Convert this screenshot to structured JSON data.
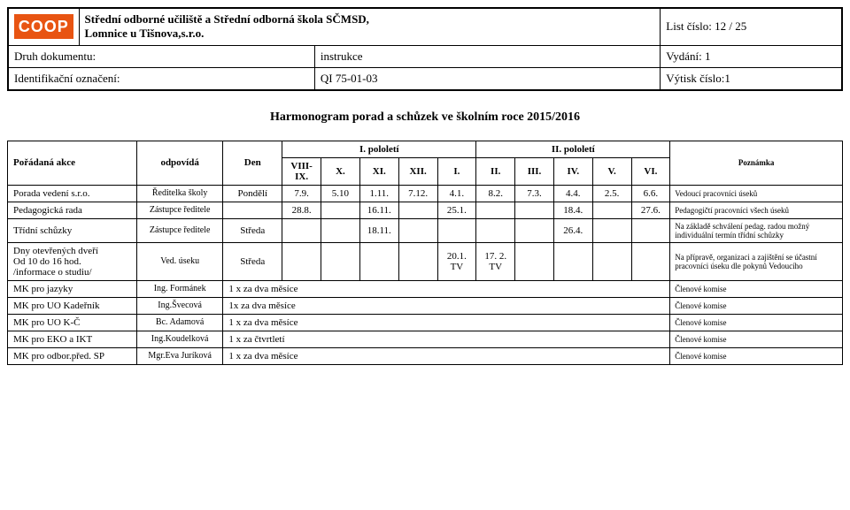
{
  "header": {
    "logo_text": "COOP",
    "title_line1": "Střední odborné učiliště a Střední odborná škola SČMSD,",
    "title_line2": "Lomnice u Tišnova,s.r.o.",
    "list_label": "List číslo: 12 / 25",
    "doc_type_label": "Druh dokumentu:",
    "doc_type_value": "instrukce",
    "vydani_label": "Vydání: 1",
    "ident_label": "Identifikační označení:",
    "ident_value": "QI 75-01-03",
    "vytisk_label": "Výtisk číslo:1"
  },
  "doc_title": "Harmonogram porad a schůzek ve školním roce 2015/2016",
  "colors": {
    "logo_bg": "#e85412",
    "logo_fg": "#ffffff",
    "border": "#000000",
    "bg": "#ffffff"
  },
  "table": {
    "head": {
      "poradana": "Pořádaná akce",
      "odpovida": "odpovídá",
      "den": "Den",
      "pololeti1": "I. pololetí",
      "pololeti2": "II. pololetí",
      "poznamka": "Poznámka",
      "months": [
        "VIII-IX.",
        "X.",
        "XI.",
        "XII.",
        "I.",
        "II.",
        "III.",
        "IV.",
        "V.",
        "VI."
      ]
    },
    "rows": [
      {
        "akce": "Porada vedení s.r.o.",
        "odpovida": "Ředitelka školy",
        "den": "Pondělí",
        "m": [
          "7.9.",
          "5.10",
          "1.11.",
          "7.12.",
          "4.1.",
          "8.2.",
          "7.3.",
          "4.4.",
          "2.5.",
          "6.6."
        ],
        "note": "Vedoucí pracovníci úseků"
      },
      {
        "akce": "Pedagogická rada",
        "odpovida": "Zástupce ředitele",
        "den": "",
        "m": [
          "28.8.",
          "",
          "16.11.",
          "",
          "25.1.",
          "",
          "",
          "18.4.",
          "",
          "27.6."
        ],
        "note": "Pedagogičtí pracovníci všech úseků"
      },
      {
        "akce": "Třídní schůzky",
        "odpovida": "Zástupce ředitele",
        "den": "Středa",
        "m": [
          "",
          "",
          "18.11.",
          "",
          "",
          "",
          "",
          "26.4.",
          "",
          ""
        ],
        "note": "Na základě schválení pedag. radou možný individuální termín třídní schůzky"
      },
      {
        "akce": "Dny otevřených dveří\nOd 10 do 16 hod.\n/informace o studiu/",
        "odpovida": "Ved. úseku",
        "den": "Středa",
        "m": [
          "",
          "",
          "",
          "",
          "20.1.\nTV",
          "17. 2.\nTV",
          "",
          "",
          "",
          ""
        ],
        "note": "Na přípravě, organizaci a zajištění se účastní pracovníci úseku dle pokynů Vedoucího"
      },
      {
        "akce": "MK pro jazyky",
        "odpovida": "Ing. Formánek",
        "den_span": "1 x za dva měsíce",
        "note": "Členové komise"
      },
      {
        "akce": "MK pro UO Kadeřník",
        "odpovida": "Ing.Švecová",
        "den_span": "1x za dva měsíce",
        "note": "Členové komise"
      },
      {
        "akce": "MK pro UO K-Č",
        "odpovida": "Bc. Adamová",
        "den_span": "1 x za dva měsíce",
        "note": "Členové komise"
      },
      {
        "akce": "MK pro EKO a IKT",
        "odpovida": "Ing.Koudelková",
        "den_span": "1 x za čtvrtletí",
        "note": "Členové komise"
      },
      {
        "akce": "MK pro odbor.před. SP",
        "odpovida": "Mgr.Eva Juríková",
        "den_span": "1 x za dva měsíce",
        "note": "Členové komise"
      }
    ]
  }
}
